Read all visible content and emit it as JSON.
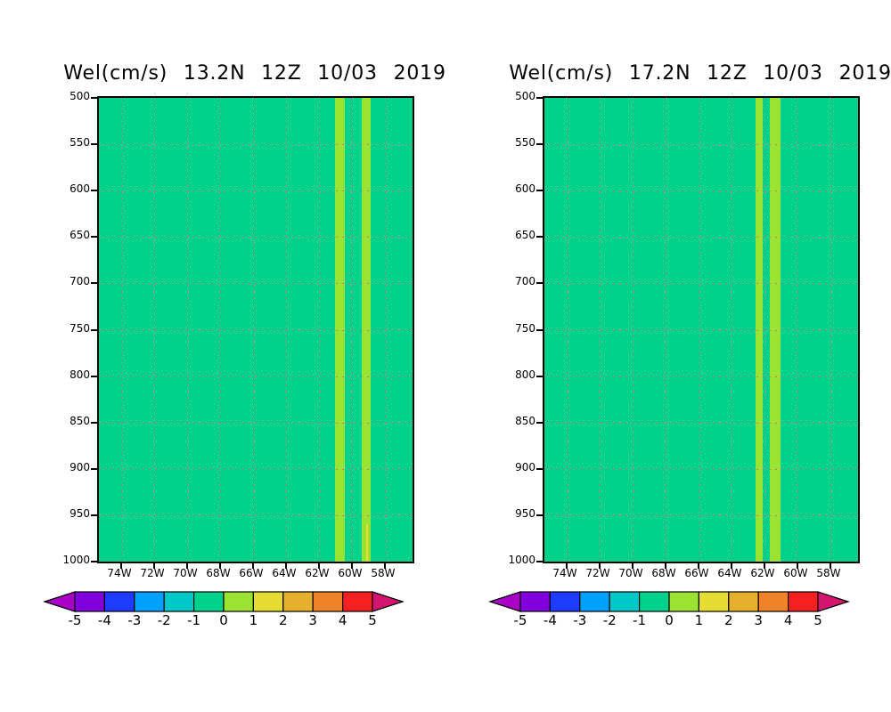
{
  "page": {
    "background": "#ffffff"
  },
  "palette": {
    "plot_background": "#00d28c",
    "grid_dot": "#c2798c",
    "frame": "#000000",
    "band_0_1": "#9ae332",
    "band_1_2": "#e6dc32"
  },
  "colorbar": {
    "labels": [
      "-5",
      "-4",
      "-3",
      "-2",
      "-1",
      "0",
      "1",
      "2",
      "3",
      "4",
      "5"
    ],
    "box_colors": [
      "#8200dc",
      "#1e3cff",
      "#00a0ff",
      "#00c8c8",
      "#00d28c",
      "#9ae332",
      "#e6dc32",
      "#e6af2d",
      "#f08228",
      "#f52020"
    ],
    "left_arrow_color": "#aa00c8",
    "right_arrow_color": "#d4146e"
  },
  "chart_data": [
    {
      "type": "heatmap",
      "title": "Wel(cm/s) 13.2N 12Z 10/03 2019",
      "field": "Wel",
      "units": "cm/s",
      "latitude": "13.2N",
      "time": "12Z 10/03 2019",
      "y_axis": {
        "label_ticks": [
          "500",
          "550",
          "600",
          "650",
          "700",
          "750",
          "800",
          "850",
          "900",
          "950",
          "1000"
        ],
        "min_hpa": 500,
        "max_hpa": 1000,
        "grid": true
      },
      "x_axis": {
        "ticks": [
          {
            "label": "74W",
            "lon_w": 74
          },
          {
            "label": "72W",
            "lon_w": 72
          },
          {
            "label": "70W",
            "lon_w": 70
          },
          {
            "label": "68W",
            "lon_w": 68
          },
          {
            "label": "66W",
            "lon_w": 66
          },
          {
            "label": "64W",
            "lon_w": 64
          },
          {
            "label": "62W",
            "lon_w": 62
          },
          {
            "label": "60W",
            "lon_w": 60
          },
          {
            "label": "58W",
            "lon_w": 58
          }
        ],
        "left_edge_lon_w": 75.35,
        "right_edge_lon_w": 56.32,
        "grid": true
      },
      "background_band": {
        "value_range": "-1 to 0 cm/s",
        "color_key": "plot_background"
      },
      "bands": [
        {
          "value_range": "0 to 1 cm/s",
          "color_key": "band_0_1",
          "from_lon_w": 61.05,
          "to_lon_w": 60.45,
          "from_hpa": 500,
          "to_hpa": 1000
        },
        {
          "value_range": "0 to 1 cm/s",
          "color_key": "band_0_1",
          "from_lon_w": 59.4,
          "to_lon_w": 58.85,
          "from_hpa": 500,
          "to_hpa": 1000
        },
        {
          "value_range": "1 to 2 cm/s",
          "color_key": "band_1_2",
          "from_lon_w": 59.16,
          "to_lon_w": 59.02,
          "from_hpa": 960,
          "to_hpa": 1000
        }
      ],
      "legend": "shared rainbow colorbar -5 to 5 cm/s"
    },
    {
      "type": "heatmap",
      "title": "Wel(cm/s) 17.2N 12Z 10/03 2019",
      "field": "Wel",
      "units": "cm/s",
      "latitude": "17.2N",
      "time": "12Z 10/03 2019",
      "y_axis": {
        "label_ticks": [
          "500",
          "550",
          "600",
          "650",
          "700",
          "750",
          "800",
          "850",
          "900",
          "950",
          "1000"
        ],
        "min_hpa": 500,
        "max_hpa": 1000,
        "grid": true
      },
      "x_axis": {
        "ticks": [
          {
            "label": "74W",
            "lon_w": 74
          },
          {
            "label": "72W",
            "lon_w": 72
          },
          {
            "label": "70W",
            "lon_w": 70
          },
          {
            "label": "68W",
            "lon_w": 68
          },
          {
            "label": "66W",
            "lon_w": 66
          },
          {
            "label": "64W",
            "lon_w": 64
          },
          {
            "label": "62W",
            "lon_w": 62
          },
          {
            "label": "60W",
            "lon_w": 60
          },
          {
            "label": "58W",
            "lon_w": 58
          }
        ],
        "left_edge_lon_w": 75.35,
        "right_edge_lon_w": 56.32,
        "grid": true
      },
      "background_band": {
        "value_range": "-1 to 0 cm/s",
        "color_key": "plot_background"
      },
      "bands": [
        {
          "value_range": "0 to 1 cm/s",
          "color_key": "band_0_1",
          "from_lon_w": 62.54,
          "to_lon_w": 62.11,
          "from_hpa": 500,
          "to_hpa": 1000
        },
        {
          "value_range": "0 to 1 cm/s",
          "color_key": "band_0_1",
          "from_lon_w": 61.67,
          "to_lon_w": 61.02,
          "from_hpa": 500,
          "to_hpa": 1000
        }
      ],
      "legend": "shared rainbow colorbar -5 to 5 cm/s"
    }
  ]
}
